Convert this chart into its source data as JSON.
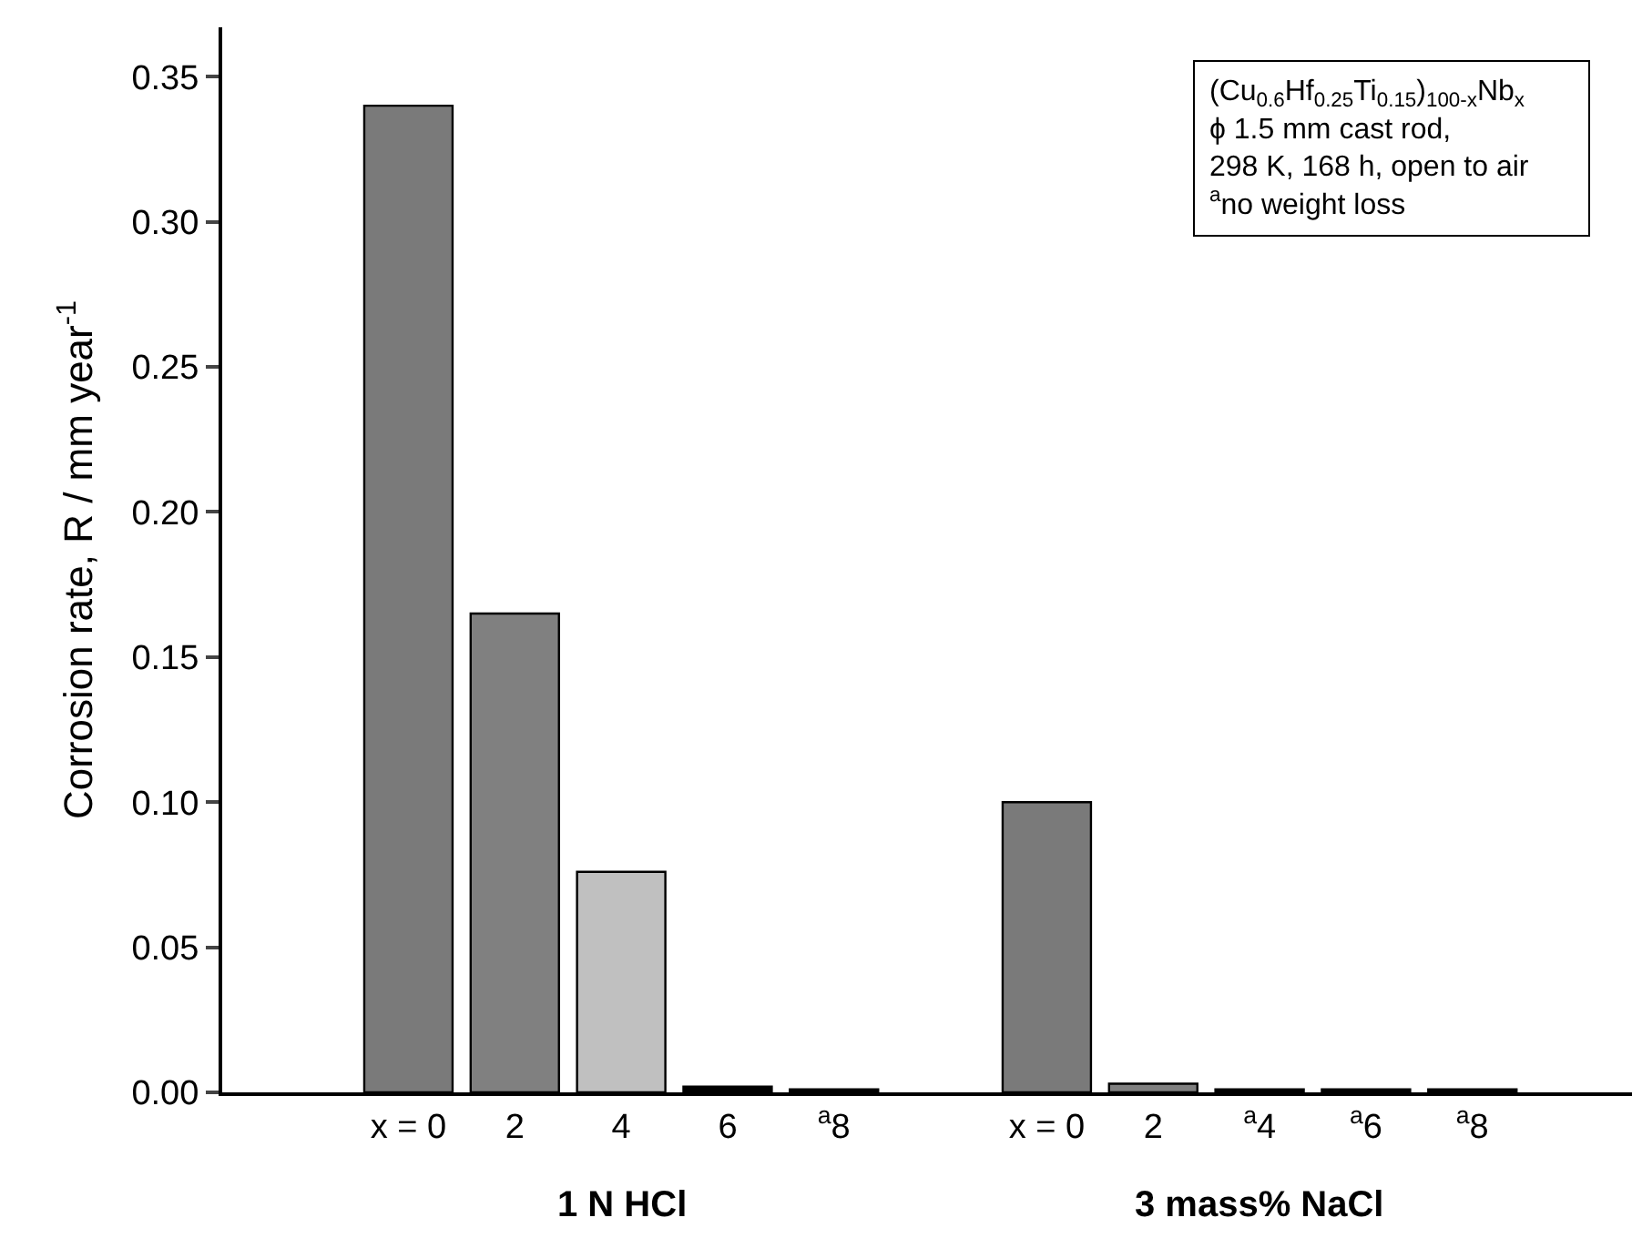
{
  "chart_data": {
    "type": "bar",
    "ylabel": "Corrosion rate, R / mm year$^{-1}$",
    "categories": [
      "x = 0",
      "2",
      "4",
      "6",
      "$^{a}$8",
      null,
      "x = 0",
      "2",
      "$^{a}$4",
      "$^{a}$6",
      "$^{a}$8"
    ],
    "values": [
      0.34,
      0.165,
      0.076,
      0.002,
      0.001,
      null,
      0.1,
      0.003,
      0.001,
      0.001,
      0.001
    ],
    "colors": [
      "#7a7a7a",
      "#808080",
      "#c0c0c0",
      "#000000",
      "#000000",
      "#ffffff",
      "#7a7a7a",
      "#808080",
      "#000000",
      "#000000",
      "#000000"
    ],
    "ylim": [
      0,
      0.367
    ],
    "yticks": [
      {
        "value": 0,
        "label": "0.00"
      },
      {
        "value": 0.05,
        "label": "0.05"
      },
      {
        "value": 0.1,
        "label": "0.10"
      },
      {
        "value": 0.15,
        "label": "0.15"
      },
      {
        "value": 0.2,
        "label": "0.20"
      },
      {
        "value": 0.25,
        "label": "0.25"
      },
      {
        "value": 0.3,
        "label": "0.30"
      },
      {
        "value": 0.35,
        "label": "0.35"
      }
    ],
    "annotations": [
      "1 N HCl",
      "3 mass% NaCl",
      "(Cu$_{0.6}$Hf$_{0.25}$Ti$_{0.15}$)$_{100-x}$Nb$_{x}$\nϕ 1.5 mm cast rod,\n298 K, 168 h, open to air\n$^{a}$no weight loss"
    ],
    "legend": false
  }
}
